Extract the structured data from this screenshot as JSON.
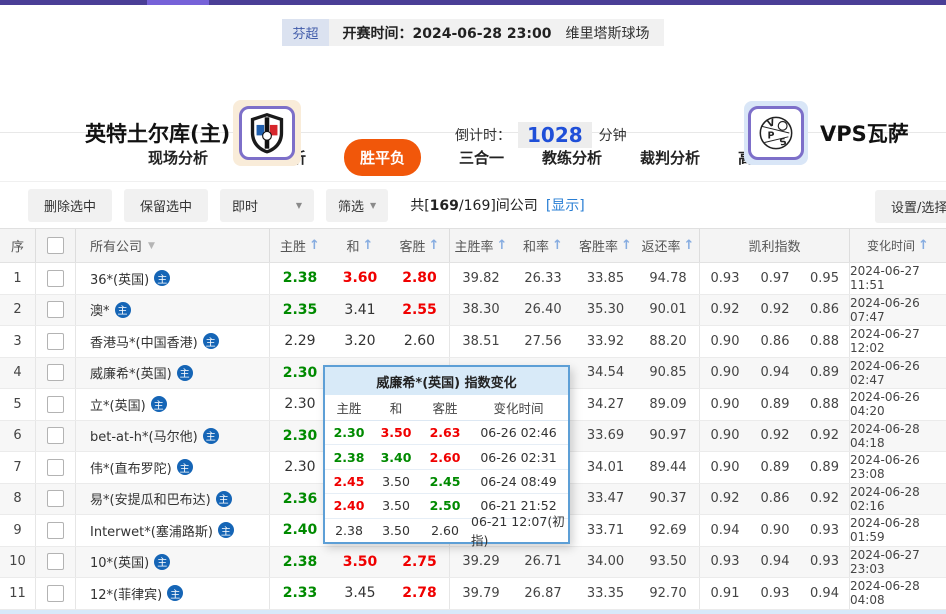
{
  "top": {
    "league": "芬超",
    "kickoff": "开赛时间：2024-06-28 23:00",
    "venue": "维里塔斯球场"
  },
  "teams": {
    "home_name": "英特土尔库(主)",
    "away_name": "VPS瓦萨",
    "away_logo_text": "VPS",
    "countdown_label": "倒计时：",
    "countdown_value": "1028",
    "countdown_unit": "分钟"
  },
  "tabs": [
    {
      "label": "现场分析",
      "active": false
    },
    {
      "label": "数据分析",
      "active": false
    },
    {
      "label": "胜平负",
      "active": true
    },
    {
      "label": "三合一",
      "active": false
    },
    {
      "label": "教练分析",
      "active": false
    },
    {
      "label": "裁判分析",
      "active": false
    },
    {
      "label": "高手推荐",
      "active": false
    }
  ],
  "toolbar": {
    "delete_selected": "删除选中",
    "keep_selected": "保留选中",
    "instant": "即时",
    "filter": "筛选",
    "count_prefix": "共[",
    "count_main": "169",
    "count_rest": "/169]间公司",
    "show_link": "[显示]",
    "settings": "设置/选择"
  },
  "icons": {
    "sort_asc": "↑",
    "caret_down": "▼"
  },
  "table": {
    "badge": "主",
    "headers": {
      "no": "序",
      "company": "所有公司",
      "home": "主胜",
      "draw": "和",
      "away": "客胜",
      "home_rate": "主胜率",
      "draw_rate": "和率",
      "away_rate": "客胜率",
      "return_rate": "返还率",
      "kelly": "凯利指数",
      "time": "变化时间"
    },
    "rows": [
      {
        "no": "1",
        "company": "36*(英国)",
        "home": {
          "v": "2.38",
          "c": "g"
        },
        "draw": {
          "v": "3.60",
          "c": "r"
        },
        "away": {
          "v": "2.80",
          "c": "r"
        },
        "rates": [
          "39.82",
          "26.33",
          "33.85",
          "94.78"
        ],
        "kelly": [
          "0.93",
          "0.97",
          "0.95"
        ],
        "time": "2024-06-27 11:51"
      },
      {
        "no": "2",
        "company": "澳*",
        "home": {
          "v": "2.35",
          "c": "g"
        },
        "draw": {
          "v": "3.41",
          "c": "k"
        },
        "away": {
          "v": "2.55",
          "c": "r"
        },
        "rates": [
          "38.30",
          "26.40",
          "35.30",
          "90.01"
        ],
        "kelly": [
          "0.92",
          "0.92",
          "0.86"
        ],
        "time": "2024-06-26 07:47"
      },
      {
        "no": "3",
        "company": "香港马*(中国香港)",
        "home": {
          "v": "2.29",
          "c": "k"
        },
        "draw": {
          "v": "3.20",
          "c": "k"
        },
        "away": {
          "v": "2.60",
          "c": "k"
        },
        "rates": [
          "38.51",
          "27.56",
          "33.92",
          "88.20"
        ],
        "kelly": [
          "0.90",
          "0.86",
          "0.88"
        ],
        "time": "2024-06-27 12:02"
      },
      {
        "no": "4",
        "company": "威廉希*(英国)",
        "home": {
          "v": "2.30",
          "c": "g"
        },
        "draw": {
          "v": "",
          "c": "k"
        },
        "away": {
          "v": "",
          "c": "k"
        },
        "rates": [
          "",
          "",
          "34.54",
          "90.85"
        ],
        "kelly": [
          "0.90",
          "0.94",
          "0.89"
        ],
        "time": "2024-06-26 02:47"
      },
      {
        "no": "5",
        "company": "立*(英国)",
        "home": {
          "v": "2.30",
          "c": "k"
        },
        "draw": {
          "v": "",
          "c": "k"
        },
        "away": {
          "v": "",
          "c": "k"
        },
        "rates": [
          "",
          "",
          "34.27",
          "89.09"
        ],
        "kelly": [
          "0.90",
          "0.89",
          "0.88"
        ],
        "time": "2024-06-26 04:20"
      },
      {
        "no": "6",
        "company": "bet-at-h*(马尔他)",
        "home": {
          "v": "2.30",
          "c": "g"
        },
        "draw": {
          "v": "",
          "c": "k"
        },
        "away": {
          "v": "",
          "c": "k"
        },
        "rates": [
          "",
          "",
          "33.69",
          "90.97"
        ],
        "kelly": [
          "0.90",
          "0.92",
          "0.92"
        ],
        "time": "2024-06-28 04:18"
      },
      {
        "no": "7",
        "company": "伟*(直布罗陀)",
        "home": {
          "v": "2.30",
          "c": "k"
        },
        "draw": {
          "v": "",
          "c": "k"
        },
        "away": {
          "v": "",
          "c": "k"
        },
        "rates": [
          "",
          "",
          "34.01",
          "89.44"
        ],
        "kelly": [
          "0.90",
          "0.89",
          "0.89"
        ],
        "time": "2024-06-26 23:08"
      },
      {
        "no": "8",
        "company": "易*(安提瓜和巴布达)",
        "home": {
          "v": "2.36",
          "c": "g"
        },
        "draw": {
          "v": "",
          "c": "k"
        },
        "away": {
          "v": "",
          "c": "k"
        },
        "rates": [
          "",
          "",
          "33.47",
          "90.37"
        ],
        "kelly": [
          "0.92",
          "0.86",
          "0.92"
        ],
        "time": "2024-06-28 02:16"
      },
      {
        "no": "9",
        "company": "Interwet*(塞浦路斯)",
        "home": {
          "v": "2.40",
          "c": "g"
        },
        "draw": {
          "v": "",
          "c": "k"
        },
        "away": {
          "v": "",
          "c": "k"
        },
        "rates": [
          "",
          "",
          "33.71",
          "92.69"
        ],
        "kelly": [
          "0.94",
          "0.90",
          "0.93"
        ],
        "time": "2024-06-28 01:59"
      },
      {
        "no": "10",
        "company": "10*(英国)",
        "home": {
          "v": "2.38",
          "c": "g"
        },
        "draw": {
          "v": "3.50",
          "c": "r"
        },
        "away": {
          "v": "2.75",
          "c": "r"
        },
        "rates": [
          "39.29",
          "26.71",
          "34.00",
          "93.50"
        ],
        "kelly": [
          "0.93",
          "0.94",
          "0.93"
        ],
        "time": "2024-06-27 23:03"
      },
      {
        "no": "11",
        "company": "12*(菲律宾)",
        "home": {
          "v": "2.33",
          "c": "g"
        },
        "draw": {
          "v": "3.45",
          "c": "k"
        },
        "away": {
          "v": "2.78",
          "c": "r"
        },
        "rates": [
          "39.79",
          "26.87",
          "33.35",
          "92.70"
        ],
        "kelly": [
          "0.91",
          "0.93",
          "0.94"
        ],
        "time": "2024-06-28 04:08"
      }
    ]
  },
  "popup": {
    "title": "威廉希*(英国) 指数变化",
    "headers": {
      "home": "主胜",
      "draw": "和",
      "away": "客胜",
      "time": "变化时间"
    },
    "rows": [
      {
        "home": {
          "v": "2.30",
          "c": "g"
        },
        "draw": {
          "v": "3.50",
          "c": "r"
        },
        "away": {
          "v": "2.63",
          "c": "r"
        },
        "time": "06-26 02:46"
      },
      {
        "home": {
          "v": "2.38",
          "c": "g"
        },
        "draw": {
          "v": "3.40",
          "c": "g"
        },
        "away": {
          "v": "2.60",
          "c": "r"
        },
        "time": "06-26 02:31"
      },
      {
        "home": {
          "v": "2.45",
          "c": "r"
        },
        "draw": {
          "v": "3.50",
          "c": "k"
        },
        "away": {
          "v": "2.45",
          "c": "g"
        },
        "time": "06-24 08:49"
      },
      {
        "home": {
          "v": "2.40",
          "c": "r"
        },
        "draw": {
          "v": "3.50",
          "c": "k"
        },
        "away": {
          "v": "2.50",
          "c": "g"
        },
        "time": "06-21 21:52"
      },
      {
        "home": {
          "v": "2.38",
          "c": "k"
        },
        "draw": {
          "v": "3.50",
          "c": "k"
        },
        "away": {
          "v": "2.60",
          "c": "k"
        },
        "time": "06-21 12:07(初指)"
      }
    ]
  },
  "colors": {
    "accent_orange": "#f1570a",
    "odds_up_green": "#008a00",
    "odds_down_red": "#f00000",
    "popup_border_blue": "#5d9fd6",
    "topbar_purple": "#4a3e96",
    "link_blue": "#2a7fd4"
  }
}
